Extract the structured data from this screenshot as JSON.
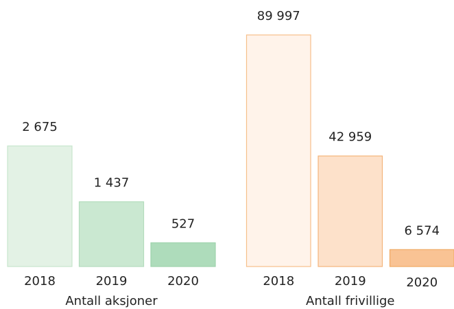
{
  "chart_data": [
    {
      "type": "bar",
      "title": "Antall aksjoner",
      "categories": [
        "2018",
        "2019",
        "2020"
      ],
      "values": [
        2675,
        1437,
        527
      ],
      "value_labels": [
        "2 675",
        "1 437",
        "527"
      ],
      "colors": [
        "#e3f2e5",
        "#cae8d1",
        "#aedcbb"
      ],
      "stroke_colors": [
        "#c8e6cd",
        "#b3dcbd",
        "#9ed3ac"
      ]
    },
    {
      "type": "bar",
      "title": "Antall frivillige",
      "categories": [
        "2018",
        "2019",
        "2020"
      ],
      "values": [
        89997,
        42959,
        6574
      ],
      "value_labels": [
        "89 997",
        "42 959",
        "6 574"
      ],
      "colors": [
        "#fff3ea",
        "#fde1ca",
        "#f9c394"
      ],
      "stroke_colors": [
        "#f6bf8a",
        "#f4b57c",
        "#f0a962"
      ]
    }
  ]
}
